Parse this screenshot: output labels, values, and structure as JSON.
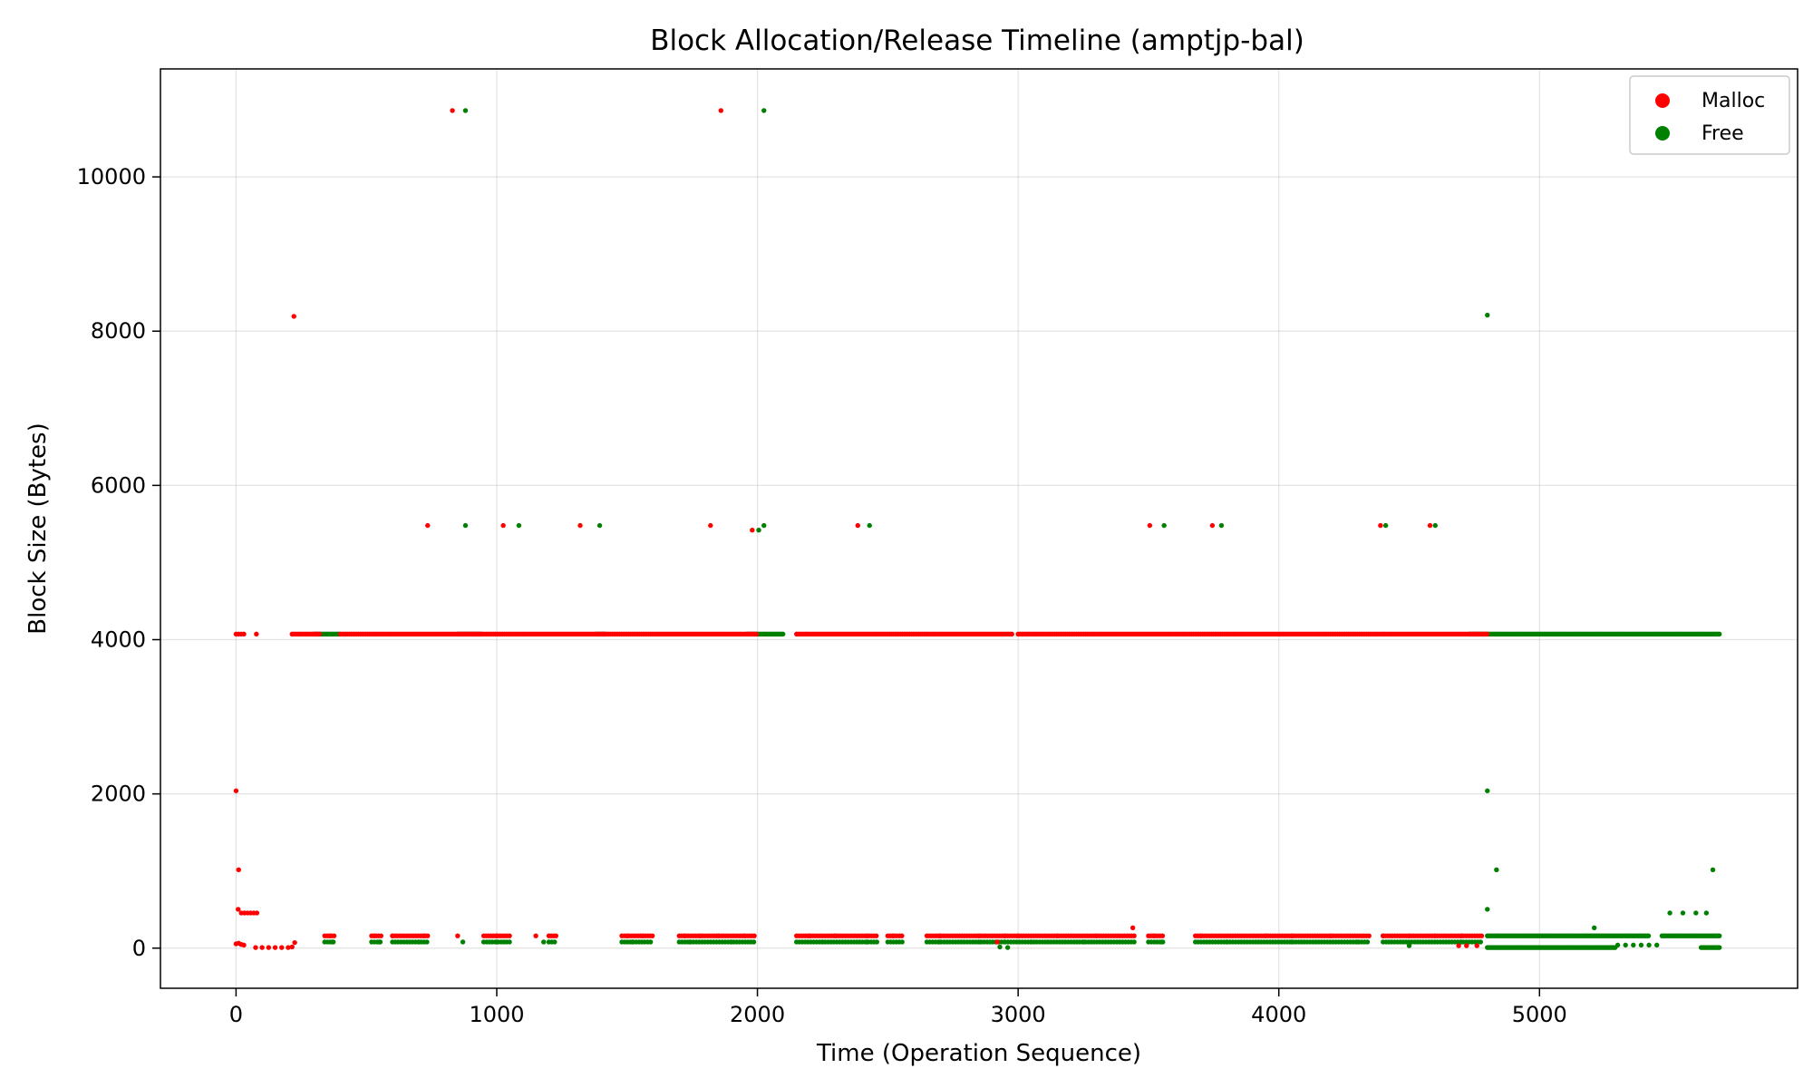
{
  "chart_data": {
    "type": "scatter",
    "title": "Block Allocation/Release Timeline (amptjp-bal)",
    "xlabel": "Time (Operation Sequence)",
    "ylabel": "Block Size (Bytes)",
    "xlim": [
      -290,
      5990
    ],
    "ylim": [
      -520,
      11400
    ],
    "xticks": [
      0,
      1000,
      2000,
      3000,
      4000,
      5000
    ],
    "yticks": [
      0,
      2000,
      4000,
      6000,
      8000,
      10000
    ],
    "grid": true,
    "legend_position": "top-right",
    "series": [
      {
        "name": "Malloc",
        "color": "#ff0000",
        "points": [
          [
            0,
            2040
          ],
          [
            10,
            1016
          ],
          [
            8,
            504
          ],
          [
            0,
            4072
          ],
          [
            10,
            4072
          ],
          [
            20,
            4072
          ],
          [
            30,
            4072
          ],
          [
            78,
            4072
          ],
          [
            20,
            456
          ],
          [
            32,
            456
          ],
          [
            44,
            456
          ],
          [
            56,
            456
          ],
          [
            68,
            456
          ],
          [
            80,
            456
          ],
          [
            0,
            56
          ],
          [
            10,
            64
          ],
          [
            20,
            48
          ],
          [
            30,
            40
          ],
          [
            75,
            8
          ],
          [
            100,
            8
          ],
          [
            125,
            8
          ],
          [
            150,
            8
          ],
          [
            175,
            8
          ],
          [
            200,
            8
          ],
          [
            215,
            16
          ],
          [
            222,
            8192
          ],
          [
            225,
            72
          ],
          [
            830,
            10860
          ],
          [
            1860,
            10860
          ],
          [
            735,
            5480
          ],
          [
            1025,
            5480
          ],
          [
            1320,
            5480
          ],
          [
            1820,
            5480
          ],
          [
            2385,
            5480
          ],
          [
            3505,
            5480
          ],
          [
            3745,
            5480
          ],
          [
            4390,
            5480
          ],
          [
            4580,
            5480
          ],
          [
            1980,
            5420
          ],
          [
            3440,
            264
          ],
          [
            360,
            160
          ],
          [
            530,
            160
          ],
          [
            600,
            160
          ],
          [
            720,
            160
          ],
          [
            850,
            160
          ],
          [
            1000,
            160
          ],
          [
            1150,
            160
          ],
          [
            1500,
            160
          ],
          [
            1560,
            160
          ],
          [
            1720,
            160
          ],
          [
            1780,
            160
          ],
          [
            1850,
            160
          ],
          [
            1950,
            160
          ],
          [
            2200,
            160
          ],
          [
            2300,
            160
          ],
          [
            2420,
            160
          ],
          [
            2520,
            160
          ],
          [
            2700,
            160
          ],
          [
            2850,
            160
          ],
          [
            2950,
            160
          ],
          [
            3000,
            160
          ],
          [
            3150,
            160
          ],
          [
            3300,
            160
          ],
          [
            3520,
            160
          ],
          [
            3700,
            160
          ],
          [
            3950,
            160
          ],
          [
            4050,
            160
          ],
          [
            4200,
            160
          ],
          [
            4400,
            160
          ],
          [
            4500,
            160
          ],
          [
            4600,
            160
          ],
          [
            4700,
            160
          ],
          [
            2920,
            80
          ],
          [
            4690,
            32
          ],
          [
            4720,
            32
          ],
          [
            4760,
            32
          ]
        ],
        "runs_at_4072": [
          [
            215,
            320
          ],
          [
            400,
            2000
          ],
          [
            2150,
            2980
          ],
          [
            3000,
            4800
          ]
        ],
        "runs_at_160": [
          [
            340,
            380
          ],
          [
            520,
            560
          ],
          [
            600,
            740
          ],
          [
            950,
            1050
          ],
          [
            1200,
            1230
          ],
          [
            1480,
            1600
          ],
          [
            1700,
            1990
          ],
          [
            2150,
            2460
          ],
          [
            2500,
            2560
          ],
          [
            2650,
            2950
          ],
          [
            2950,
            3450
          ],
          [
            3500,
            3560
          ],
          [
            3680,
            4350
          ],
          [
            4400,
            4780
          ]
        ]
      },
      {
        "name": "Free",
        "color": "#008000",
        "points": [
          [
            880,
            10860
          ],
          [
            2025,
            10860
          ],
          [
            4800,
            8208
          ],
          [
            880,
            5480
          ],
          [
            1085,
            5480
          ],
          [
            1395,
            5480
          ],
          [
            2025,
            5480
          ],
          [
            2430,
            5480
          ],
          [
            3560,
            5480
          ],
          [
            3780,
            5480
          ],
          [
            4410,
            5480
          ],
          [
            4600,
            5480
          ],
          [
            2005,
            5420
          ],
          [
            4800,
            2040
          ],
          [
            4835,
            1016
          ],
          [
            4800,
            504
          ],
          [
            5665,
            1016
          ],
          [
            5210,
            264
          ],
          [
            370,
            80
          ],
          [
            550,
            80
          ],
          [
            700,
            80
          ],
          [
            870,
            80
          ],
          [
            1000,
            80
          ],
          [
            1180,
            80
          ],
          [
            1520,
            80
          ],
          [
            1740,
            80
          ],
          [
            1900,
            80
          ],
          [
            2250,
            80
          ],
          [
            2420,
            80
          ],
          [
            2700,
            80
          ],
          [
            2850,
            80
          ],
          [
            3050,
            80
          ],
          [
            3250,
            80
          ],
          [
            3550,
            80
          ],
          [
            3800,
            80
          ],
          [
            4050,
            80
          ],
          [
            4300,
            80
          ],
          [
            4500,
            32
          ],
          [
            4700,
            80
          ],
          [
            2930,
            16
          ],
          [
            2960,
            8
          ],
          [
            5690,
            160
          ],
          [
            5500,
            456
          ],
          [
            5550,
            456
          ],
          [
            5600,
            456
          ],
          [
            5640,
            456
          ]
        ],
        "runs_at_4072": [
          [
            300,
            400
          ],
          [
            850,
            940
          ],
          [
            1380,
            1420
          ],
          [
            1960,
            2100
          ],
          [
            4730,
            5690
          ]
        ],
        "runs_at_80": [
          [
            340,
            380
          ],
          [
            520,
            560
          ],
          [
            600,
            740
          ],
          [
            950,
            1050
          ],
          [
            1200,
            1230
          ],
          [
            1480,
            1600
          ],
          [
            1700,
            1990
          ],
          [
            2150,
            2460
          ],
          [
            2500,
            2560
          ],
          [
            2650,
            2950
          ],
          [
            2950,
            3450
          ],
          [
            3500,
            3560
          ],
          [
            3680,
            4350
          ],
          [
            4400,
            4780
          ]
        ],
        "runs_at_160": [
          [
            4800,
            5420
          ],
          [
            5470,
            5690
          ]
        ],
        "runs_at_8": [
          [
            4800,
            5290
          ],
          [
            5620,
            5690
          ]
        ],
        "runs_at_40": [
          [
            5300,
            5460
          ]
        ]
      }
    ]
  }
}
